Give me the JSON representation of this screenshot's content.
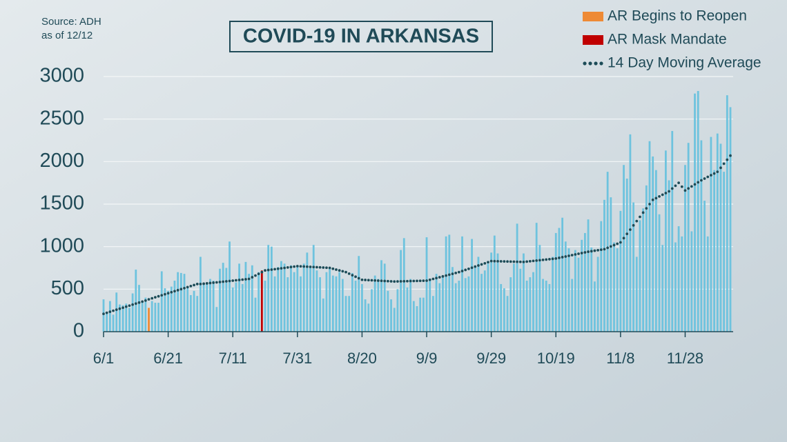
{
  "chart_data": {
    "type": "bar",
    "title": "COVID-19 IN ARKANSAS",
    "source": "Source: ADH",
    "as_of": "as of 12/12",
    "color": "#6ec3de",
    "ylim": [
      0,
      3000
    ],
    "yticks": [
      0,
      500,
      1000,
      1500,
      2000,
      2500,
      3000
    ],
    "grid": true,
    "legend": "top-right",
    "highlights": [
      {
        "name": "AR Begins to Reopen",
        "color": "#ee8a35",
        "index": 14
      },
      {
        "name": "AR Mask Mandate",
        "color": "#c00000",
        "index": 49
      }
    ],
    "categories": [
      "6/1",
      null,
      null,
      null,
      null,
      null,
      null,
      null,
      null,
      null,
      null,
      null,
      null,
      null,
      null,
      null,
      null,
      null,
      null,
      null,
      "6/21",
      null,
      null,
      null,
      null,
      null,
      null,
      null,
      null,
      null,
      null,
      null,
      null,
      null,
      null,
      null,
      null,
      null,
      null,
      null,
      "7/11",
      null,
      null,
      null,
      null,
      null,
      null,
      null,
      null,
      null,
      null,
      null,
      null,
      null,
      null,
      null,
      null,
      null,
      null,
      null,
      "7/31",
      null,
      null,
      null,
      null,
      null,
      null,
      null,
      null,
      null,
      null,
      null,
      null,
      null,
      null,
      null,
      null,
      null,
      null,
      null,
      "8/20",
      null,
      null,
      null,
      null,
      null,
      null,
      null,
      null,
      null,
      null,
      null,
      null,
      null,
      null,
      null,
      null,
      null,
      null,
      null,
      "9/9",
      null,
      null,
      null,
      null,
      null,
      null,
      null,
      null,
      null,
      null,
      null,
      null,
      null,
      null,
      null,
      null,
      null,
      null,
      null,
      "9/29",
      null,
      null,
      null,
      null,
      null,
      null,
      null,
      null,
      null,
      null,
      null,
      null,
      null,
      null,
      null,
      null,
      null,
      null,
      null,
      "10/19",
      null,
      null,
      null,
      null,
      null,
      null,
      null,
      null,
      null,
      null,
      null,
      null,
      null,
      null,
      null,
      null,
      null,
      null,
      null,
      "11/8",
      null,
      null,
      null,
      null,
      null,
      null,
      null,
      null,
      null,
      null,
      null,
      null,
      null,
      null,
      null,
      null,
      null,
      null,
      null,
      "11/28",
      null,
      null,
      null,
      null,
      null,
      null,
      null,
      null,
      null,
      null,
      null,
      null,
      null,
      null
    ],
    "values": [
      380,
      230,
      360,
      200,
      460,
      320,
      310,
      330,
      280,
      450,
      730,
      550,
      350,
      400,
      280,
      360,
      340,
      340,
      710,
      510,
      480,
      530,
      600,
      700,
      690,
      680,
      520,
      430,
      480,
      420,
      880,
      560,
      570,
      620,
      600,
      290,
      740,
      810,
      750,
      1060,
      520,
      580,
      800,
      560,
      820,
      680,
      780,
      400,
      700,
      720,
      600,
      1020,
      1000,
      650,
      760,
      830,
      800,
      640,
      780,
      700,
      780,
      650,
      800,
      930,
      760,
      1020,
      720,
      640,
      390,
      700,
      740,
      660,
      650,
      700,
      620,
      420,
      420,
      690,
      600,
      890,
      560,
      380,
      330,
      500,
      660,
      620,
      840,
      800,
      480,
      380,
      280,
      500,
      960,
      1100,
      520,
      620,
      360,
      300,
      400,
      400,
      1110,
      600,
      420,
      680,
      570,
      640,
      1120,
      1140,
      760,
      570,
      600,
      1120,
      630,
      650,
      1090,
      780,
      880,
      680,
      720,
      800,
      930,
      1130,
      920,
      560,
      510,
      420,
      640,
      800,
      1270,
      740,
      920,
      600,
      640,
      700,
      1280,
      1020,
      620,
      600,
      560,
      880,
      1160,
      1220,
      1340,
      1060,
      980,
      620,
      960,
      870,
      1080,
      1160,
      1320,
      990,
      590,
      880,
      1300,
      1550,
      1880,
      1580,
      1050,
      980,
      1420,
      1960,
      1800,
      2320,
      1520,
      880,
      1310,
      1450,
      1720,
      2240,
      2060,
      1900,
      1380,
      1020,
      2130,
      1780,
      2360,
      1050,
      1240,
      1120,
      1960,
      2220,
      1180,
      2800,
      2830,
      2250,
      1540,
      1120,
      2290,
      1900,
      2330,
      2210,
      1880,
      2780,
      2640
    ],
    "moving_average": {
      "name": "14 Day Moving Average",
      "color": "#1c4b57",
      "values": [
        210,
        222,
        234,
        246,
        258,
        270,
        282,
        294,
        306,
        318,
        330,
        342,
        354,
        366,
        380,
        392,
        404,
        416,
        428,
        440,
        452,
        464,
        476,
        488,
        500,
        512,
        524,
        536,
        548,
        560,
        560,
        564,
        568,
        572,
        576,
        580,
        584,
        588,
        592,
        596,
        600,
        604,
        608,
        612,
        616,
        620,
        640,
        660,
        680,
        700,
        720,
        725,
        730,
        735,
        740,
        745,
        750,
        755,
        760,
        765,
        770,
        768,
        766,
        764,
        762,
        760,
        758,
        756,
        754,
        752,
        750,
        740,
        730,
        720,
        710,
        700,
        682,
        664,
        646,
        628,
        610,
        608,
        606,
        604,
        602,
        600,
        598,
        596,
        594,
        592,
        590,
        591,
        592,
        593,
        594,
        595,
        596,
        597,
        598,
        599,
        600,
        610,
        620,
        630,
        640,
        650,
        660,
        670,
        680,
        690,
        700,
        713,
        726,
        739,
        752,
        765,
        778,
        791,
        804,
        817,
        830,
        829,
        828,
        827,
        826,
        825,
        824,
        823,
        822,
        821,
        820,
        824,
        828,
        832,
        836,
        840,
        844,
        848,
        852,
        856,
        860,
        868,
        876,
        884,
        892,
        900,
        908,
        916,
        924,
        932,
        940,
        946,
        952,
        958,
        964,
        970,
        986,
        1002,
        1018,
        1034,
        1050,
        1100,
        1150,
        1200,
        1250,
        1300,
        1350,
        1400,
        1450,
        1500,
        1550,
        1570,
        1590,
        1610,
        1630,
        1650,
        1683,
        1716,
        1750,
        1705,
        1660,
        1684,
        1708,
        1732,
        1756,
        1780,
        1800,
        1820,
        1840,
        1860,
        1880,
        1927,
        1975,
        2022,
        2070
      ]
    }
  }
}
